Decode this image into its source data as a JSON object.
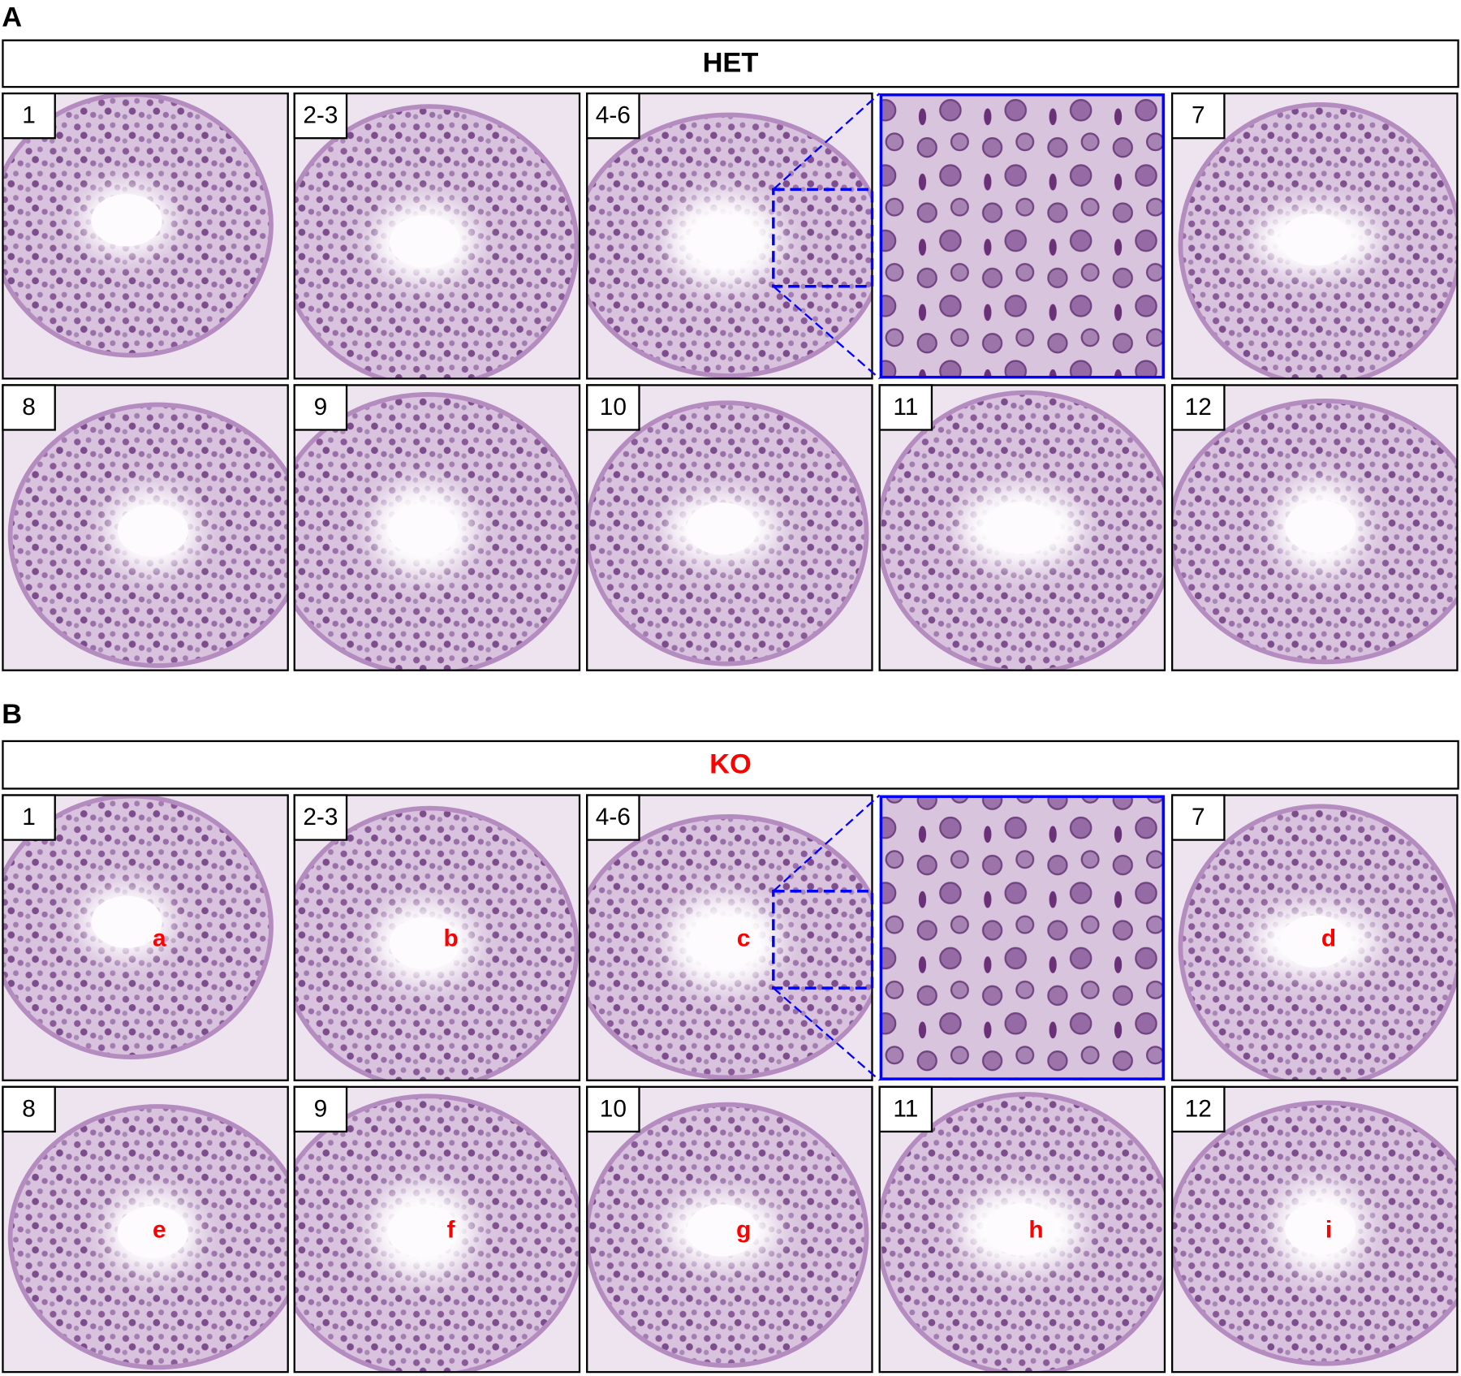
{
  "panels": [
    {
      "label": "A",
      "title": "HET",
      "title_color": "#000000",
      "tiles": [
        "1",
        "2-3",
        "4-6",
        "7",
        "8",
        "9",
        "10",
        "11",
        "12"
      ]
    },
    {
      "label": "B",
      "title": "KO",
      "title_color": "#ff0000",
      "tiles": [
        "1",
        "2-3",
        "4-6",
        "7",
        "8",
        "9",
        "10",
        "11",
        "12"
      ],
      "markers": [
        "a",
        "b",
        "c",
        "d",
        "e",
        "f",
        "g",
        "h",
        "i"
      ]
    }
  ]
}
